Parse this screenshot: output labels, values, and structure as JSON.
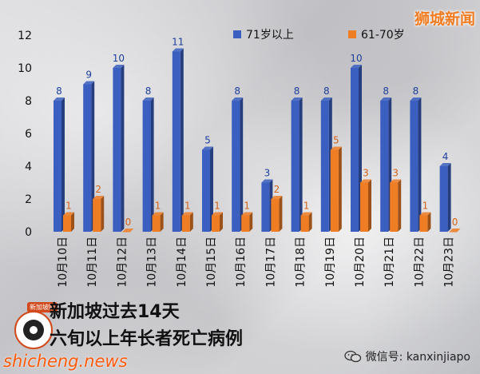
{
  "brand": "狮城新闻",
  "caption": {
    "line1": "新加坡过去14天",
    "line2": "六旬以上年长者死亡病例"
  },
  "logo_label": "新加坡眼",
  "watermark": "shicheng.news",
  "wechat": {
    "label": "微信号: kanxinjiapo",
    "icon": "wechat-icon"
  },
  "colors": {
    "series1": "#3a5fc0",
    "series2": "#ef7d23",
    "brand": "#f07a1f"
  },
  "chart_data": {
    "type": "bar",
    "title": "",
    "xlabel": "",
    "ylabel": "",
    "ylim": [
      0,
      12
    ],
    "yticks": [
      0,
      2,
      4,
      6,
      8,
      10,
      12
    ],
    "grid": false,
    "legend_position": "top",
    "categories": [
      "10月10日",
      "10月11日",
      "10月12日",
      "10月13日",
      "10月14日",
      "10月15日",
      "10月16日",
      "10月17日",
      "10月18日",
      "10月19日",
      "10月20日",
      "10月21日",
      "10月22日",
      "10月23日"
    ],
    "series": [
      {
        "name": "71岁以上",
        "values": [
          8,
          9,
          10,
          8,
          11,
          5,
          8,
          3,
          8,
          8,
          10,
          8,
          8,
          4
        ]
      },
      {
        "name": "61-70岁",
        "values": [
          1,
          2,
          0,
          1,
          1,
          1,
          1,
          2,
          1,
          5,
          3,
          3,
          1,
          0
        ]
      }
    ]
  }
}
